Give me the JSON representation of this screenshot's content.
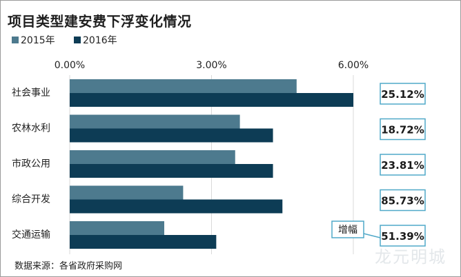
{
  "title": "项目类型建安费下浮变化情况",
  "source": "数据来源：各省政府采购网",
  "watermark": "龙元明城",
  "colors": {
    "series2015": "#4d7a8e",
    "series2016": "#0d3c55",
    "badge_border": "#4fa8c8",
    "gridline": "#d9d9d9"
  },
  "chart_data": {
    "type": "bar",
    "orientation": "horizontal",
    "categories": [
      "社会事业",
      "农林水利",
      "市政公用",
      "综合开发",
      "交通运输"
    ],
    "series": [
      {
        "name": "2015年",
        "values": [
          4.8,
          3.6,
          3.5,
          2.4,
          2.0
        ]
      },
      {
        "name": "2016年",
        "values": [
          6.0,
          4.3,
          4.3,
          4.5,
          3.1
        ]
      }
    ],
    "xlim": [
      0,
      6
    ],
    "xticks": [
      "0.00%",
      "3.00%",
      "6.00%"
    ],
    "xtick_values": [
      0,
      3,
      6
    ],
    "growth_label": "增幅",
    "growth_values": [
      "25.12%",
      "18.72%",
      "23.81%",
      "85.73%",
      "51.39%"
    ],
    "legend_position": "top-left",
    "grid": true
  }
}
